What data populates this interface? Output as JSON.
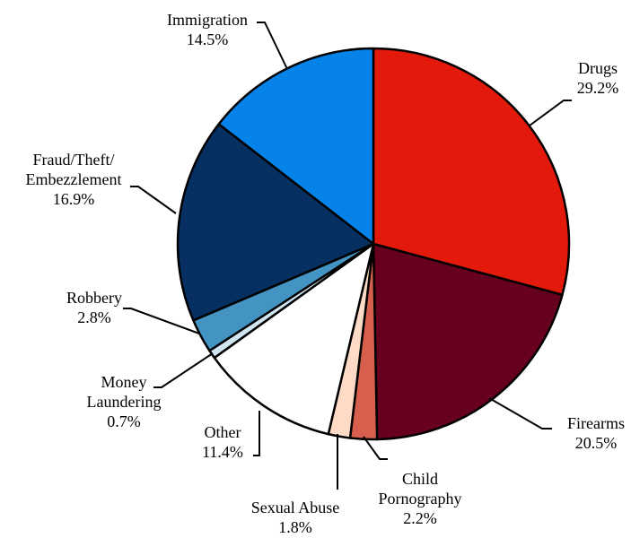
{
  "chart_data": {
    "type": "pie",
    "title": "",
    "slices": [
      {
        "label_lines": [
          "Drugs"
        ],
        "value_label": "29.2%",
        "value": 29.2,
        "color": "#e31a0b"
      },
      {
        "label_lines": [
          "Firearms"
        ],
        "value_label": "20.5%",
        "value": 20.5,
        "color": "#67001f"
      },
      {
        "label_lines": [
          "Child",
          "Pornography"
        ],
        "value_label": "2.2%",
        "value": 2.2,
        "color": "#d6604d"
      },
      {
        "label_lines": [
          "Sexual Abuse"
        ],
        "value_label": "1.8%",
        "value": 1.8,
        "color": "#fddbc7"
      },
      {
        "label_lines": [
          "Other"
        ],
        "value_label": "11.4%",
        "value": 11.4,
        "color": "#ffffff"
      },
      {
        "label_lines": [
          "Money",
          "Laundering"
        ],
        "value_label": "0.7%",
        "value": 0.7,
        "color": "#d1e5f0"
      },
      {
        "label_lines": [
          "Robbery"
        ],
        "value_label": "2.8%",
        "value": 2.8,
        "color": "#4393c3"
      },
      {
        "label_lines": [
          "Fraud/Theft/",
          "Embezzlement"
        ],
        "value_label": "16.9%",
        "value": 16.9,
        "color": "#053061"
      },
      {
        "label_lines": [
          "Immigration"
        ],
        "value_label": "14.5%",
        "value": 14.5,
        "color": "#0583e8"
      }
    ]
  }
}
